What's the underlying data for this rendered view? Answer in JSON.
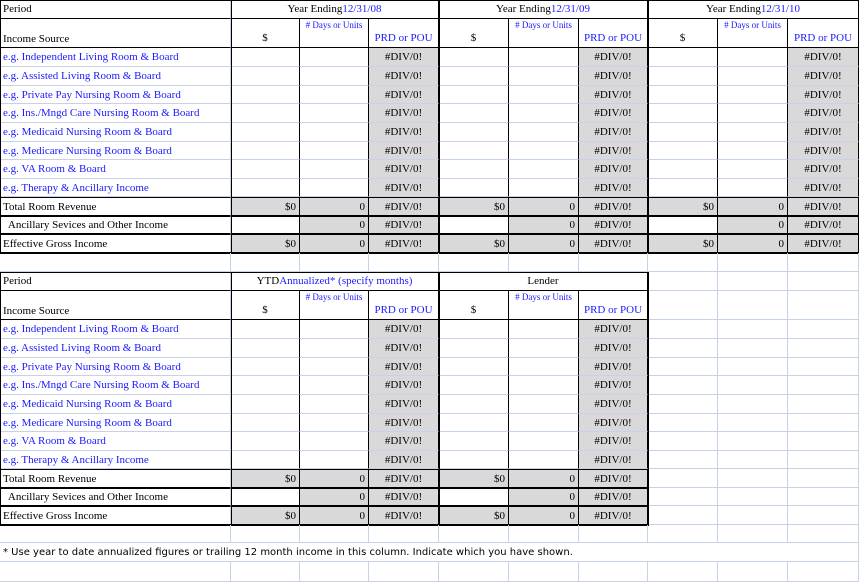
{
  "colors": {
    "accent_text": "#1a1aff",
    "computed_cell": "#d9d9d9",
    "gridline": "#c6d3e6"
  },
  "tables": [
    {
      "period_label": "Period",
      "income_source_label": "Income Source",
      "groups": [
        {
          "title_prefix": "Year Ending ",
          "title_value": "12/31/08"
        },
        {
          "title_prefix": "Year Ending ",
          "title_value": "12/31/09"
        },
        {
          "title_prefix": "Year Ending ",
          "title_value": "12/31/10"
        }
      ]
    },
    {
      "period_label": "Period",
      "income_source_label": "Income Source",
      "groups": [
        {
          "title_prefix": "YTD ",
          "title_value": "Annualized* (specify months)"
        },
        {
          "title_prefix": "Lender",
          "title_value": ""
        }
      ]
    }
  ],
  "column_headers": {
    "dollars": "$",
    "days": "# Days or Units",
    "prd": "PRD or POU"
  },
  "income_rows": [
    "e.g. Independent Living Room & Board",
    "e.g. Assisted Living Room & Board",
    "e.g. Private Pay Nursing Room & Board",
    "e.g. Ins./Mngd Care Nursing Room & Board",
    "e.g. Medicaid Nursing Room & Board",
    "e.g. Medicare Nursing Room & Board",
    "e.g. VA Room & Board",
    "e.g. Therapy & Ancillary Income"
  ],
  "summary_rows": [
    {
      "label": "Total Room Revenue",
      "dollars": "$0",
      "days": "0",
      "prd": "#DIV/0!"
    },
    {
      "label": "  Ancillary Sevices and Other Income",
      "dollars": "",
      "days": "0",
      "prd": "#DIV/0!"
    },
    {
      "label": "Effective Gross Income",
      "dollars": "$0",
      "days": "0",
      "prd": "#DIV/0!"
    }
  ],
  "error_value": "#DIV/0!",
  "footnote": "* Use year to date annualized figures or trailing 12 month income in this column. Indicate which you have shown."
}
